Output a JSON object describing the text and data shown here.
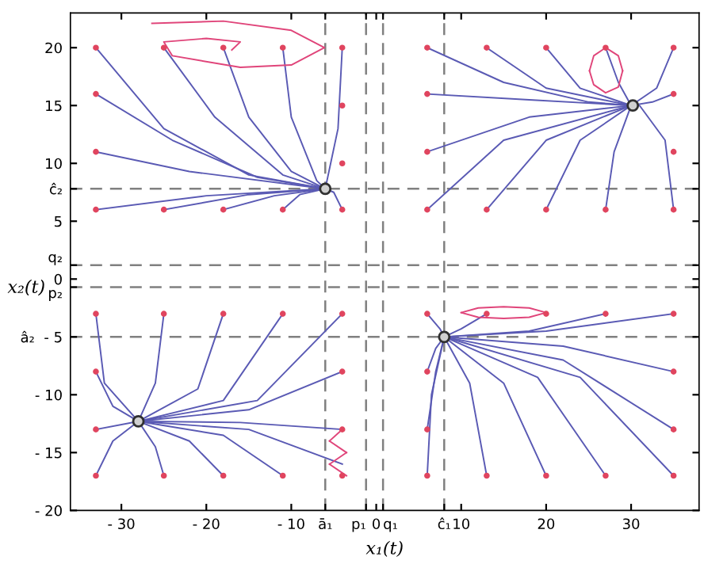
{
  "chart_data": {
    "type": "line",
    "xlabel": "x₁(t)",
    "ylabel": "x₂(t)",
    "xlim": [
      -36,
      38
    ],
    "ylim": [
      -20,
      23
    ],
    "xticks": [
      {
        "value": -30,
        "label": "- 30"
      },
      {
        "value": -20,
        "label": "- 20"
      },
      {
        "value": -10,
        "label": "- 10"
      },
      {
        "value": -6,
        "label": "ā₁"
      },
      {
        "value": -1.2,
        "label": "p₁"
      },
      0,
      {
        "value": 0.8,
        "label": "q₁"
      },
      {
        "value": 8,
        "label": "ĉ₁"
      },
      10,
      20,
      30
    ],
    "yticks": [
      {
        "value": -20,
        "label": "- 20"
      },
      {
        "value": -15,
        "label": "- 15"
      },
      {
        "value": -10,
        "label": "- 10"
      },
      {
        "value": -5,
        "label": "â₂  - 5"
      },
      {
        "value": -0.7,
        "label": "p₂"
      },
      0,
      {
        "value": 1.2,
        "label": "q₂"
      },
      5,
      {
        "value": 7.8,
        "label": "ĉ₂"
      },
      10,
      15,
      20
    ],
    "grid": false,
    "line_style": "solid",
    "ref_lines": [
      {
        "axis": "x",
        "value": -6,
        "color": "#808080",
        "line_style": "dashed"
      },
      {
        "axis": "x",
        "value": -1.2,
        "color": "#808080",
        "line_style": "dashed"
      },
      {
        "axis": "x",
        "value": 0.8,
        "color": "#808080",
        "line_style": "dashed"
      },
      {
        "axis": "x",
        "value": 8,
        "color": "#808080",
        "line_style": "dashed"
      },
      {
        "axis": "y",
        "value": 7.8,
        "color": "#808080",
        "line_style": "dashed"
      },
      {
        "axis": "y",
        "value": 1.2,
        "color": "#808080",
        "line_style": "dashed"
      },
      {
        "axis": "y",
        "value": -0.7,
        "color": "#808080",
        "line_style": "dashed"
      },
      {
        "axis": "y",
        "value": -5,
        "color": "#808080",
        "line_style": "dashed"
      }
    ],
    "series": [
      {
        "color": "#5a5ab4",
        "x": [
          -33,
          -25,
          -15,
          -6
        ],
        "values": [
          20,
          13,
          9,
          7.8
        ]
      },
      {
        "color": "#5a5ab4",
        "x": [
          -33,
          -24,
          -14,
          -6
        ],
        "values": [
          16,
          12,
          8.8,
          7.8
        ]
      },
      {
        "color": "#5a5ab4",
        "x": [
          -33,
          -22,
          -6
        ],
        "values": [
          11,
          9.3,
          7.8
        ]
      },
      {
        "color": "#5a5ab4",
        "x": [
          -33,
          -20,
          -6
        ],
        "values": [
          6,
          7.2,
          7.8
        ]
      },
      {
        "color": "#5a5ab4",
        "x": [
          -25,
          -15,
          -6
        ],
        "values": [
          6,
          7.3,
          7.8
        ]
      },
      {
        "color": "#5a5ab4",
        "x": [
          -18,
          -12,
          -6
        ],
        "values": [
          6,
          7.2,
          7.8
        ]
      },
      {
        "color": "#5a5ab4",
        "x": [
          -11,
          -9,
          -6
        ],
        "values": [
          6,
          7.3,
          7.8
        ]
      },
      {
        "color": "#5a5ab4",
        "x": [
          -25,
          -19,
          -11,
          -6
        ],
        "values": [
          20,
          14,
          9,
          7.8
        ]
      },
      {
        "color": "#5a5ab4",
        "x": [
          -18,
          -15,
          -10,
          -6
        ],
        "values": [
          20,
          14,
          9.3,
          7.8
        ]
      },
      {
        "color": "#5a5ab4",
        "x": [
          -11,
          -10,
          -7,
          -6
        ],
        "values": [
          20,
          14,
          8.5,
          7.8
        ]
      },
      {
        "color": "#5a5ab4",
        "x": [
          -4,
          -4.5,
          -6
        ],
        "values": [
          20,
          13,
          7.8
        ]
      },
      {
        "color": "#5a5ab4",
        "x": [
          -4,
          -5,
          -6
        ],
        "values": [
          6,
          7.5,
          7.8
        ]
      },
      {
        "color": "#e0457a",
        "x": [
          -26.4,
          -18,
          -10,
          -6.1,
          -10,
          -16,
          -24,
          -25,
          -20,
          -16,
          -17
        ],
        "values": [
          22.1,
          22.3,
          21.5,
          20,
          18.5,
          18.3,
          19.3,
          20.5,
          20.8,
          20.5,
          19.8
        ]
      },
      {
        "color": "#5a5ab4",
        "x": [
          6,
          15,
          25,
          30
        ],
        "values": [
          20,
          17,
          15.3,
          15
        ]
      },
      {
        "color": "#5a5ab4",
        "x": [
          6,
          18,
          30
        ],
        "values": [
          16,
          15.5,
          15
        ]
      },
      {
        "color": "#5a5ab4",
        "x": [
          6,
          18,
          30
        ],
        "values": [
          11,
          14,
          15
        ]
      },
      {
        "color": "#5a5ab4",
        "x": [
          6,
          15,
          30
        ],
        "values": [
          6,
          12,
          15
        ]
      },
      {
        "color": "#5a5ab4",
        "x": [
          13,
          20,
          30
        ],
        "values": [
          20,
          16.5,
          15
        ]
      },
      {
        "color": "#5a5ab4",
        "x": [
          13,
          20,
          30
        ],
        "values": [
          6,
          12,
          15
        ]
      },
      {
        "color": "#5a5ab4",
        "x": [
          20,
          24,
          30
        ],
        "values": [
          20,
          16.5,
          15
        ]
      },
      {
        "color": "#5a5ab4",
        "x": [
          20,
          24,
          30
        ],
        "values": [
          6,
          12,
          15
        ]
      },
      {
        "color": "#5a5ab4",
        "x": [
          27,
          28.5,
          30
        ],
        "values": [
          20,
          17,
          15
        ]
      },
      {
        "color": "#5a5ab4",
        "x": [
          27,
          28,
          30
        ],
        "values": [
          6,
          11,
          15
        ]
      },
      {
        "color": "#5a5ab4",
        "x": [
          35,
          33,
          30
        ],
        "values": [
          20,
          16.5,
          15
        ]
      },
      {
        "color": "#5a5ab4",
        "x": [
          35,
          32.5,
          30
        ],
        "values": [
          16,
          15.3,
          15
        ]
      },
      {
        "color": "#5a5ab4",
        "x": [
          35,
          34,
          31,
          30
        ],
        "values": [
          6,
          12,
          15,
          15
        ]
      },
      {
        "color": "#e0457a",
        "x": [
          25.1,
          25.6,
          27,
          28.5,
          29
        ],
        "values": [
          18,
          19.3,
          20,
          19.3,
          18
        ]
      },
      {
        "color": "#e0457a",
        "x": [
          25.1,
          25.6,
          27,
          28.5,
          29
        ],
        "values": [
          18,
          16.8,
          16.1,
          16.6,
          18
        ]
      },
      {
        "color": "#5a5ab4",
        "x": [
          -33,
          -32,
          -28
        ],
        "values": [
          -3,
          -9,
          -12.3
        ]
      },
      {
        "color": "#5a5ab4",
        "x": [
          -33,
          -31,
          -28
        ],
        "values": [
          -8,
          -11,
          -12.3
        ]
      },
      {
        "color": "#5a5ab4",
        "x": [
          -33,
          -28
        ],
        "values": [
          -13,
          -12.3
        ]
      },
      {
        "color": "#5a5ab4",
        "x": [
          -33,
          -31,
          -28
        ],
        "values": [
          -17,
          -14,
          -12.3
        ]
      },
      {
        "color": "#5a5ab4",
        "x": [
          -25,
          -26,
          -28
        ],
        "values": [
          -3,
          -9,
          -12.3
        ]
      },
      {
        "color": "#5a5ab4",
        "x": [
          -25,
          -26,
          -28
        ],
        "values": [
          -17,
          -14.5,
          -12.3
        ]
      },
      {
        "color": "#5a5ab4",
        "x": [
          -18,
          -21,
          -28
        ],
        "values": [
          -3,
          -9.5,
          -12.3
        ]
      },
      {
        "color": "#5a5ab4",
        "x": [
          -18,
          -22,
          -28
        ],
        "values": [
          -17,
          -14,
          -12.3
        ]
      },
      {
        "color": "#5a5ab4",
        "x": [
          -11,
          -18,
          -28
        ],
        "values": [
          -3,
          -10.5,
          -12.3
        ]
      },
      {
        "color": "#5a5ab4",
        "x": [
          -11,
          -18,
          -28
        ],
        "values": [
          -17,
          -13.5,
          -12.3
        ]
      },
      {
        "color": "#5a5ab4",
        "x": [
          -4,
          -14,
          -28
        ],
        "values": [
          -3,
          -10.5,
          -12.3
        ]
      },
      {
        "color": "#5a5ab4",
        "x": [
          -4,
          -15,
          -28
        ],
        "values": [
          -8,
          -11.3,
          -12.3
        ]
      },
      {
        "color": "#5a5ab4",
        "x": [
          -4,
          -16,
          -28
        ],
        "values": [
          -13,
          -12.4,
          -12.3
        ]
      },
      {
        "color": "#5a5ab4",
        "x": [
          -4,
          -15,
          -28
        ],
        "values": [
          -16,
          -13,
          -12.3
        ]
      },
      {
        "color": "#e0457a",
        "x": [
          -5.5,
          -4
        ],
        "values": [
          -14,
          -13
        ]
      },
      {
        "color": "#e0457a",
        "x": [
          -5.5,
          -3.5
        ],
        "values": [
          -14,
          -15
        ]
      },
      {
        "color": "#e0457a",
        "x": [
          -5.5,
          -3.5
        ],
        "values": [
          -16,
          -15
        ]
      },
      {
        "color": "#e0457a",
        "x": [
          -5.5,
          -3.5
        ],
        "values": [
          -16,
          -17
        ]
      },
      {
        "color": "#5a5ab4",
        "x": [
          6,
          7.5,
          8
        ],
        "values": [
          -3,
          -4.3,
          -5
        ]
      },
      {
        "color": "#5a5ab4",
        "x": [
          6,
          7,
          8
        ],
        "values": [
          -8,
          -6,
          -5
        ]
      },
      {
        "color": "#5a5ab4",
        "x": [
          6,
          7,
          8
        ],
        "values": [
          -13,
          -8,
          -5
        ]
      },
      {
        "color": "#5a5ab4",
        "x": [
          6,
          6.5,
          8
        ],
        "values": [
          -17,
          -10,
          -5
        ]
      },
      {
        "color": "#5a5ab4",
        "x": [
          13,
          11,
          8
        ],
        "values": [
          -17,
          -9,
          -5
        ]
      },
      {
        "color": "#5a5ab4",
        "x": [
          20,
          15,
          8
        ],
        "values": [
          -17,
          -9,
          -5
        ]
      },
      {
        "color": "#5a5ab4",
        "x": [
          27,
          19,
          8
        ],
        "values": [
          -17,
          -8.5,
          -5
        ]
      },
      {
        "color": "#5a5ab4",
        "x": [
          35,
          24,
          8
        ],
        "values": [
          -17,
          -8.5,
          -5
        ]
      },
      {
        "color": "#5a5ab4",
        "x": [
          35,
          22,
          8
        ],
        "values": [
          -13,
          -7,
          -5
        ]
      },
      {
        "color": "#5a5ab4",
        "x": [
          35,
          22,
          8
        ],
        "values": [
          -8,
          -5.8,
          -5
        ]
      },
      {
        "color": "#5a5ab4",
        "x": [
          35,
          20,
          8
        ],
        "values": [
          -3,
          -4.5,
          -5
        ]
      },
      {
        "color": "#5a5ab4",
        "x": [
          27,
          18,
          8
        ],
        "values": [
          -3,
          -4.5,
          -5
        ]
      },
      {
        "color": "#5a5ab4",
        "x": [
          13,
          10,
          8
        ],
        "values": [
          -3,
          -4.3,
          -5
        ]
      },
      {
        "color": "#e0457a",
        "x": [
          10,
          12,
          15,
          18,
          20
        ],
        "values": [
          -2.9,
          -2.5,
          -2.4,
          -2.5,
          -2.9
        ]
      },
      {
        "color": "#e0457a",
        "x": [
          10,
          12,
          15,
          18,
          20
        ],
        "values": [
          -2.9,
          -3.3,
          -3.4,
          -3.3,
          -2.9
        ]
      },
      {
        "type": "scatter",
        "marker": "circle",
        "color": "#e0455f",
        "x": [
          -33,
          -33,
          -33,
          -33,
          -25,
          -25,
          -18,
          -18,
          -11,
          -11,
          -4,
          -4,
          -4,
          -4,
          6,
          6,
          6,
          6,
          13,
          13,
          20,
          20,
          27,
          27,
          35,
          35,
          35,
          35,
          -33,
          -33,
          -33,
          -33,
          -25,
          -25,
          -18,
          -18,
          -11,
          -11,
          -4,
          -4,
          -4,
          -4,
          6,
          6,
          6,
          6,
          13,
          13,
          20,
          20,
          27,
          27,
          35,
          35,
          35,
          35
        ],
        "values": [
          20,
          16,
          11,
          6,
          20,
          6,
          20,
          6,
          20,
          6,
          20,
          15,
          10,
          6,
          20,
          16,
          11,
          6,
          20,
          6,
          20,
          6,
          20,
          6,
          20,
          16,
          11,
          6,
          -3,
          -8,
          -13,
          -17,
          -3,
          -17,
          -3,
          -17,
          -3,
          -17,
          -3,
          -8,
          -13,
          -17,
          -3,
          -8,
          -13,
          -17,
          -3,
          -17,
          -3,
          -17,
          -3,
          -17,
          -3,
          -8,
          -13,
          -17
        ]
      },
      {
        "type": "scatter",
        "marker": "circle",
        "color": "#303030",
        "x": [
          -6,
          30.2,
          -28,
          8
        ],
        "values": [
          7.8,
          15,
          -12.3,
          -5
        ]
      }
    ]
  }
}
